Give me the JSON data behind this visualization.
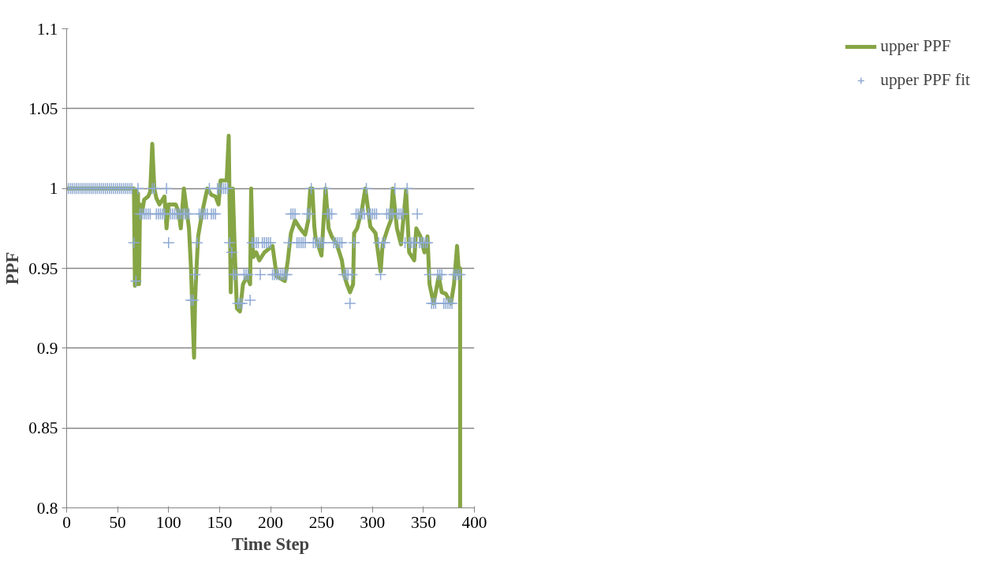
{
  "chart_data": {
    "type": "line",
    "xlabel": "Time Step",
    "ylabel": "PPF",
    "xlim": [
      0,
      400
    ],
    "xticks": [
      0,
      50,
      100,
      150,
      200,
      250,
      300,
      350,
      400
    ],
    "ylim": [
      0.8,
      1.1
    ],
    "yticks": [
      0.8,
      0.85,
      0.9,
      0.95,
      1,
      1.05,
      1.1
    ],
    "grid": "y",
    "legend": "right",
    "series": [
      {
        "name": "upper PPF",
        "color": "#86a545",
        "marker": "none",
        "x": [
          0,
          66,
          67,
          68,
          69,
          70,
          71,
          72,
          74,
          76,
          80,
          82,
          84,
          86,
          88,
          91,
          96,
          98,
          100,
          104,
          107,
          110,
          112,
          115,
          118,
          120,
          122,
          123,
          125,
          126,
          127,
          129,
          133,
          138,
          142,
          146,
          149,
          151,
          157,
          159,
          161,
          163,
          165,
          167,
          170,
          173,
          177,
          180,
          181,
          182,
          183,
          186,
          189,
          194,
          202,
          205,
          206,
          214,
          217,
          220,
          224,
          229,
          234,
          237,
          239,
          241,
          243,
          244,
          250,
          254,
          257,
          260,
          265,
          270,
          272,
          275,
          278,
          281,
          282,
          285,
          290,
          293,
          298,
          303,
          308,
          310,
          315,
          318,
          320,
          324,
          328,
          333,
          336,
          341,
          343,
          347,
          351,
          354,
          356,
          360,
          365,
          368,
          372,
          377,
          380,
          383,
          385,
          386,
          386
        ],
        "values": [
          1,
          1,
          0.939,
          0.999,
          0.94,
          0.997,
          0.94,
          0.99,
          0.985,
          0.993,
          0.995,
          0.998,
          1.028,
          1.0,
          0.994,
          0.99,
          0.995,
          0.975,
          0.99,
          0.99,
          0.99,
          0.985,
          0.975,
          1.0,
          0.985,
          0.975,
          0.95,
          0.93,
          0.894,
          0.93,
          0.945,
          0.97,
          0.985,
          1.0,
          0.996,
          0.995,
          0.99,
          1.005,
          1.005,
          1.033,
          0.935,
          1.0,
          0.96,
          0.925,
          0.923,
          0.94,
          0.945,
          0.94,
          1.0,
          0.975,
          0.957,
          0.96,
          0.955,
          0.96,
          0.964,
          0.95,
          0.945,
          0.942,
          0.955,
          0.972,
          0.98,
          0.975,
          0.971,
          0.98,
          1.0,
          1.0,
          0.976,
          0.97,
          0.958,
          1.0,
          0.975,
          0.97,
          0.965,
          0.955,
          0.946,
          0.94,
          0.935,
          0.94,
          0.972,
          0.975,
          0.988,
          1.0,
          0.976,
          0.972,
          0.948,
          0.965,
          0.975,
          0.98,
          1.0,
          0.975,
          0.965,
          0.999,
          0.96,
          0.955,
          0.975,
          0.97,
          0.96,
          0.97,
          0.94,
          0.928,
          0.945,
          0.935,
          0.934,
          0.928,
          0.94,
          0.964,
          0.945,
          0.95,
          0.8
        ]
      },
      {
        "name": "upper PPF fit",
        "type": "scatter",
        "color": "#8faad3",
        "marker": "cross",
        "x": [
          0,
          2,
          4,
          6,
          8,
          10,
          12,
          14,
          16,
          18,
          20,
          22,
          24,
          26,
          28,
          30,
          32,
          34,
          36,
          38,
          40,
          42,
          44,
          46,
          48,
          50,
          52,
          54,
          56,
          58,
          60,
          62,
          64,
          66,
          68,
          70,
          72,
          74,
          76,
          78,
          80,
          82,
          84,
          86,
          88,
          90,
          92,
          94,
          96,
          98,
          100,
          102,
          104,
          106,
          108,
          110,
          112,
          114,
          116,
          118,
          120,
          122,
          124,
          126,
          128,
          130,
          132,
          134,
          136,
          138,
          140,
          142,
          144,
          146,
          148,
          150,
          152,
          154,
          156,
          158,
          160,
          162,
          164,
          166,
          168,
          170,
          172,
          174,
          176,
          178,
          180,
          182,
          184,
          186,
          188,
          190,
          192,
          194,
          196,
          198,
          200,
          202,
          204,
          206,
          208,
          210,
          212,
          214,
          216,
          218,
          220,
          222,
          224,
          226,
          228,
          230,
          232,
          234,
          236,
          238,
          240,
          242,
          244,
          246,
          248,
          250,
          252,
          254,
          256,
          258,
          260,
          262,
          264,
          266,
          268,
          270,
          272,
          274,
          276,
          278,
          280,
          282,
          284,
          286,
          288,
          290,
          292,
          294,
          296,
          298,
          300,
          302,
          304,
          306,
          308,
          310,
          312,
          314,
          316,
          318,
          320,
          322,
          324,
          326,
          328,
          330,
          332,
          334,
          336,
          338,
          340,
          342,
          344,
          346,
          348,
          350,
          352,
          354,
          356,
          358,
          360,
          362,
          364,
          366,
          368,
          370,
          372,
          374,
          376,
          378,
          380,
          382,
          384,
          386
        ],
        "values": [
          1,
          1,
          1,
          1,
          1,
          1,
          1,
          1,
          1,
          1,
          1,
          1,
          1,
          1,
          1,
          1,
          1,
          1,
          1,
          1,
          1,
          1,
          1,
          1,
          1,
          1,
          1,
          1,
          1,
          1,
          1,
          1,
          1,
          0.966,
          0.942,
          1,
          0.984,
          0.984,
          0.984,
          0.984,
          0.984,
          0.984,
          1,
          1,
          0.984,
          0.984,
          0.984,
          0.984,
          0.984,
          1,
          0.966,
          0.984,
          0.984,
          0.984,
          0.984,
          0.984,
          0.984,
          0.984,
          0.984,
          0.984,
          0.984,
          0.93,
          0.93,
          0.946,
          0.966,
          0.984,
          0.984,
          0.984,
          0.984,
          0.984,
          1,
          0.984,
          0.984,
          0.984,
          1,
          1,
          1,
          1,
          1,
          1,
          0.966,
          0.96,
          0.946,
          0.946,
          0.928,
          0.928,
          0.928,
          0.946,
          0.946,
          0.946,
          0.93,
          0.966,
          0.966,
          0.966,
          0.966,
          0.946,
          0.966,
          0.966,
          0.966,
          0.966,
          0.966,
          0.946,
          0.946,
          0.946,
          0.946,
          0.946,
          0.946,
          0.946,
          0.946,
          0.966,
          0.984,
          0.984,
          0.984,
          0.966,
          0.966,
          0.966,
          0.966,
          0.966,
          0.984,
          0.984,
          1,
          0.966,
          0.966,
          0.966,
          0.966,
          0.966,
          0.966,
          1,
          0.984,
          0.984,
          0.984,
          0.966,
          0.966,
          0.966,
          0.966,
          0.966,
          0.946,
          0.946,
          0.946,
          0.928,
          0.946,
          0.966,
          0.984,
          0.984,
          0.984,
          0.984,
          0.984,
          1,
          0.984,
          0.984,
          0.984,
          0.984,
          0.984,
          0.966,
          0.946,
          0.966,
          0.966,
          0.984,
          0.984,
          0.984,
          0.984,
          1,
          0.984,
          0.984,
          0.984,
          0.984,
          0.966,
          1,
          0.966,
          0.966,
          0.966,
          0.966,
          0.984,
          0.966,
          0.966,
          0.966,
          0.966,
          0.966,
          0.946,
          0.928,
          0.928,
          0.928,
          0.946,
          0.946,
          0.946,
          0.928,
          0.928,
          0.928,
          0.928,
          0.928,
          0.946,
          0.946,
          0.946,
          0.946
        ]
      }
    ]
  }
}
